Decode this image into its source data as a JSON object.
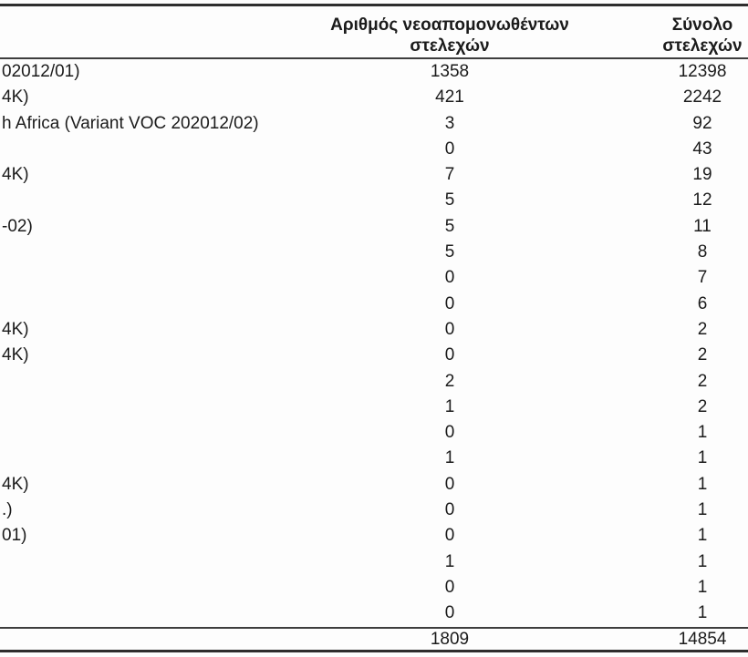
{
  "table": {
    "header": {
      "col_new_isolates_line1": "Αριθμός νεοαπομονωθέντων",
      "col_new_isolates_line2": "στελεχών",
      "col_total_line1": "Σύνολο",
      "col_total_line2": "στελεχών"
    },
    "rows": [
      {
        "label": "02012/01)",
        "new_isolates": "1358",
        "total": "12398"
      },
      {
        "label": "4K)",
        "new_isolates": "421",
        "total": "2242"
      },
      {
        "label": "h Africa (Variant VOC 202012/02)",
        "new_isolates": "3",
        "total": "92"
      },
      {
        "label": "",
        "new_isolates": "0",
        "total": "43"
      },
      {
        "label": "4K)",
        "new_isolates": "7",
        "total": "19"
      },
      {
        "label": "",
        "new_isolates": "5",
        "total": "12"
      },
      {
        "label": "-02)",
        "new_isolates": "5",
        "total": "11"
      },
      {
        "label": "",
        "new_isolates": "5",
        "total": "8"
      },
      {
        "label": "",
        "new_isolates": "0",
        "total": "7"
      },
      {
        "label": "",
        "new_isolates": "0",
        "total": "6"
      },
      {
        "label": "4K)",
        "new_isolates": "0",
        "total": "2"
      },
      {
        "label": "4K)",
        "new_isolates": "0",
        "total": "2"
      },
      {
        "label": "",
        "new_isolates": "2",
        "total": "2"
      },
      {
        "label": "",
        "new_isolates": "1",
        "total": "2"
      },
      {
        "label": "",
        "new_isolates": "0",
        "total": "1"
      },
      {
        "label": "",
        "new_isolates": "1",
        "total": "1"
      },
      {
        "label": "4K)",
        "new_isolates": "0",
        "total": "1"
      },
      {
        "label": ".)",
        "new_isolates": "0",
        "total": "1"
      },
      {
        "label": "01)",
        "new_isolates": "0",
        "total": "1"
      },
      {
        "label": "",
        "new_isolates": "1",
        "total": "1"
      },
      {
        "label": "",
        "new_isolates": "0",
        "total": "1"
      },
      {
        "label": "",
        "new_isolates": "0",
        "total": "1"
      }
    ],
    "total_row": {
      "new_isolates": "1809",
      "total": "14854"
    }
  }
}
